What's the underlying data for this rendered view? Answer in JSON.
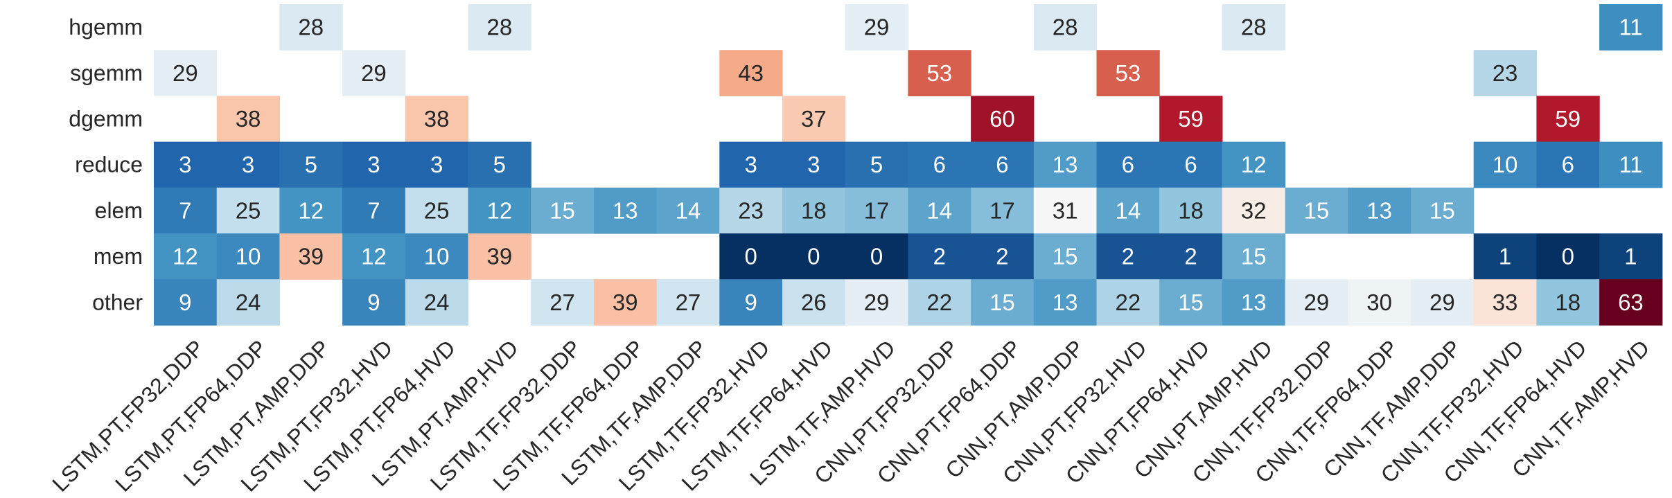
{
  "chart_data": {
    "type": "heatmap",
    "title": "",
    "xlabel": "",
    "ylabel": "",
    "grid": false,
    "colorbar": false,
    "colormap": "RdBu_r",
    "colors": {
      "darkest_blue": "#053061",
      "dark_blue": "#2166ac",
      "mid_blue": "#4393c3",
      "light_blue": "#92c5de",
      "pale_blue": "#d1e5f0",
      "neutral": "#f7f7f7",
      "pale_red": "#fddbc7",
      "light_red": "#f4a582",
      "mid_red": "#d6604d",
      "dark_red": "#b2182b",
      "darkest_red": "#67001f"
    },
    "rows": [
      "hgemm",
      "sgemm",
      "dgemm",
      "reduce",
      "elem",
      "mem",
      "other"
    ],
    "columns": [
      "LSTM,PT,FP32,DDP",
      "LSTM,PT,FP64,DDP",
      "LSTM,PT,AMP,DDP",
      "LSTM,PT,FP32,HVD",
      "LSTM,PT,FP64,HVD",
      "LSTM,PT,AMP,HVD",
      "LSTM,TF,FP32,DDP",
      "LSTM,TF,FP64,DDP",
      "LSTM,TF,AMP,DDP",
      "LSTM,TF,FP32,HVD",
      "LSTM,TF,FP64,HVD",
      "LSTM,TF,AMP,HVD",
      "CNN,PT,FP32,DDP",
      "CNN,PT,FP64,DDP",
      "CNN,PT,AMP,DDP",
      "CNN,PT,FP32,HVD",
      "CNN,PT,FP64,HVD",
      "CNN,PT,AMP,HVD",
      "CNN,TF,FP32,DDP",
      "CNN,TF,FP64,DDP",
      "CNN,TF,AMP,DDP",
      "CNN,TF,FP32,HVD",
      "CNN,TF,FP64,HVD",
      "CNN,TF,AMP,HVD"
    ],
    "values": [
      [
        null,
        null,
        28,
        null,
        null,
        28,
        null,
        null,
        null,
        null,
        null,
        29,
        null,
        null,
        28,
        null,
        null,
        28,
        null,
        null,
        null,
        null,
        null,
        11
      ],
      [
        29,
        null,
        null,
        29,
        null,
        null,
        null,
        null,
        null,
        43,
        null,
        null,
        53,
        null,
        null,
        53,
        null,
        null,
        null,
        null,
        null,
        23,
        null,
        null
      ],
      [
        null,
        38,
        null,
        null,
        38,
        null,
        null,
        null,
        null,
        null,
        37,
        null,
        null,
        60,
        null,
        null,
        59,
        null,
        null,
        null,
        null,
        null,
        59,
        null
      ],
      [
        3,
        3,
        5,
        3,
        3,
        5,
        null,
        null,
        null,
        3,
        3,
        5,
        6,
        6,
        13,
        6,
        6,
        12,
        null,
        null,
        null,
        10,
        6,
        11
      ],
      [
        7,
        25,
        12,
        7,
        25,
        12,
        15,
        13,
        14,
        23,
        18,
        17,
        14,
        17,
        31,
        14,
        18,
        32,
        15,
        13,
        15,
        null,
        null,
        null
      ],
      [
        12,
        10,
        39,
        12,
        10,
        39,
        null,
        null,
        null,
        0,
        0,
        0,
        2,
        2,
        15,
        2,
        2,
        15,
        null,
        null,
        null,
        1,
        0,
        1
      ],
      [
        9,
        24,
        null,
        9,
        24,
        null,
        27,
        39,
        27,
        9,
        26,
        29,
        22,
        15,
        13,
        22,
        15,
        13,
        29,
        30,
        29,
        33,
        18,
        63
      ]
    ]
  }
}
